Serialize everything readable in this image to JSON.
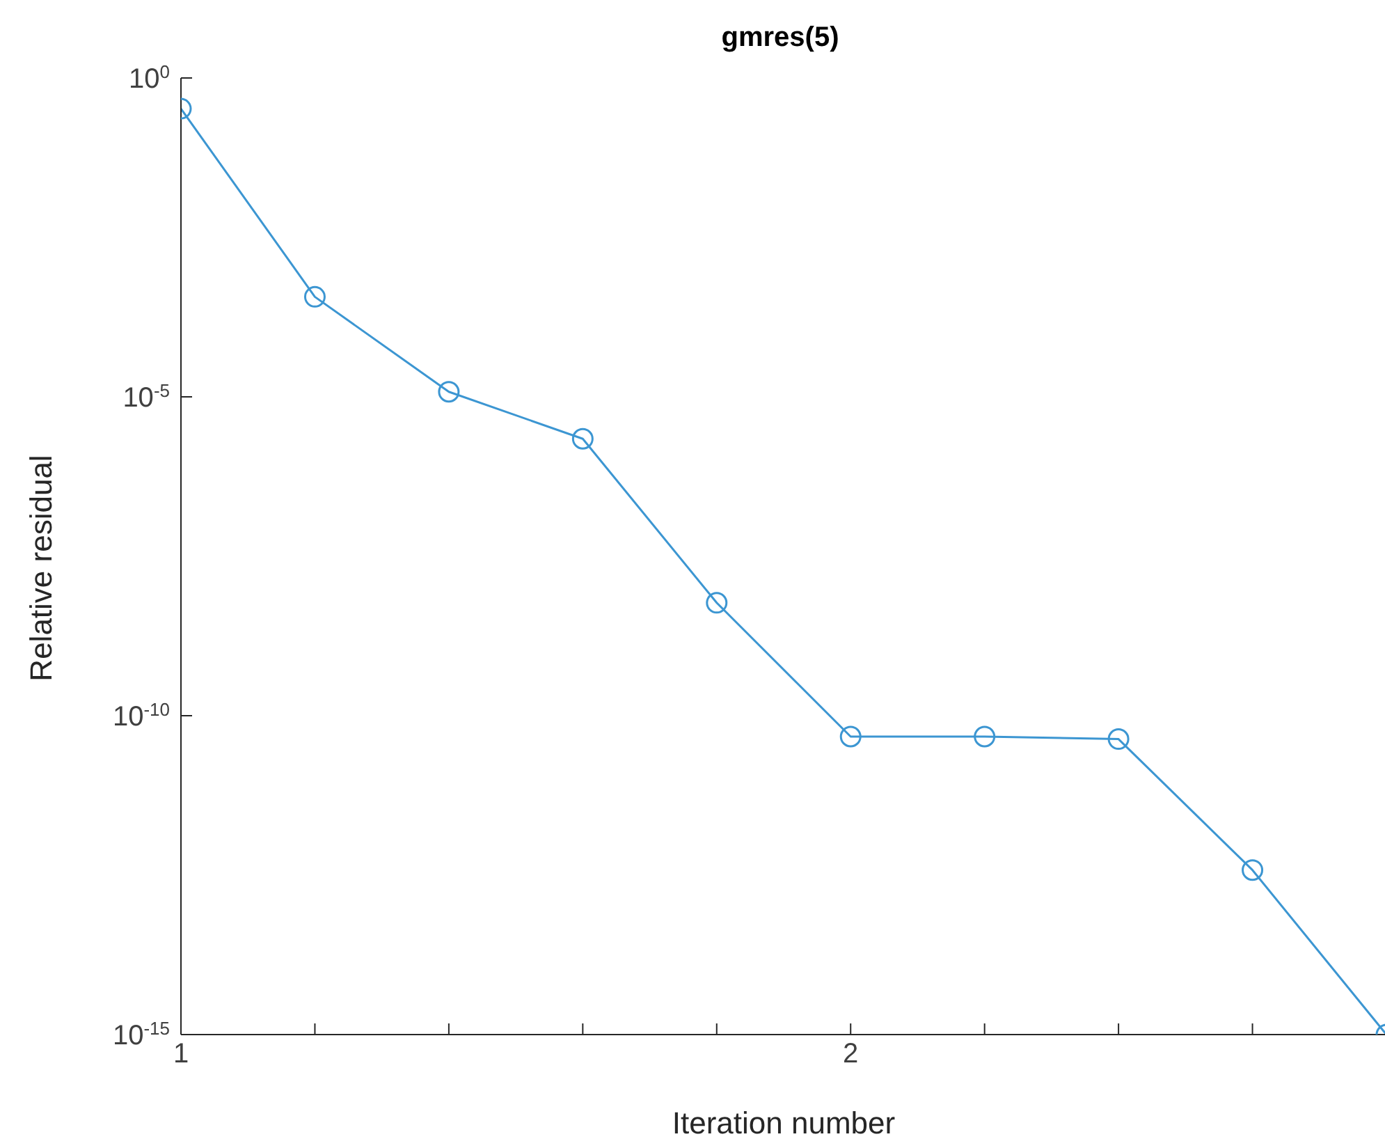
{
  "chart_data": {
    "type": "line",
    "title": "gmres(5)",
    "xlabel": "Iteration number",
    "ylabel": "Relative residual",
    "x": [
      1,
      1.2,
      1.4,
      1.6,
      1.8,
      2,
      2.2,
      2.4,
      2.6,
      2.8
    ],
    "series": [
      {
        "color": "#3c96d2",
        "values": [
          0.33,
          0.00037,
          1.2e-05,
          2.2e-06,
          5.9e-09,
          4.7e-11,
          4.7e-11,
          4.3e-11,
          3.8e-13,
          1e-15
        ]
      }
    ],
    "xlim": [
      1,
      2.8
    ],
    "xticks": [
      1,
      {
        "value": 1.2,
        "label": null
      },
      {
        "value": 1.4,
        "label": null
      },
      {
        "value": 1.6,
        "label": null
      },
      {
        "value": 1.8,
        "label": null
      },
      2,
      {
        "value": 2.2,
        "label": null
      },
      {
        "value": 2.4,
        "label": null
      },
      {
        "value": 2.6,
        "label": null
      },
      {
        "value": 2.8,
        "label": null
      }
    ],
    "ylim": [
      1e-15,
      1
    ],
    "yticks": [
      {
        "value": 1e-15,
        "label": "10$^{-15}$"
      },
      {
        "value": 1e-10,
        "label": "10$^{-10}$"
      },
      {
        "value": 1e-05,
        "label": "10$^{-5}$"
      },
      {
        "value": 1,
        "label": "10$^{0}$"
      }
    ],
    "log": true,
    "grid": false,
    "legend": false,
    "marker": "circle",
    "line_style": "solid"
  }
}
